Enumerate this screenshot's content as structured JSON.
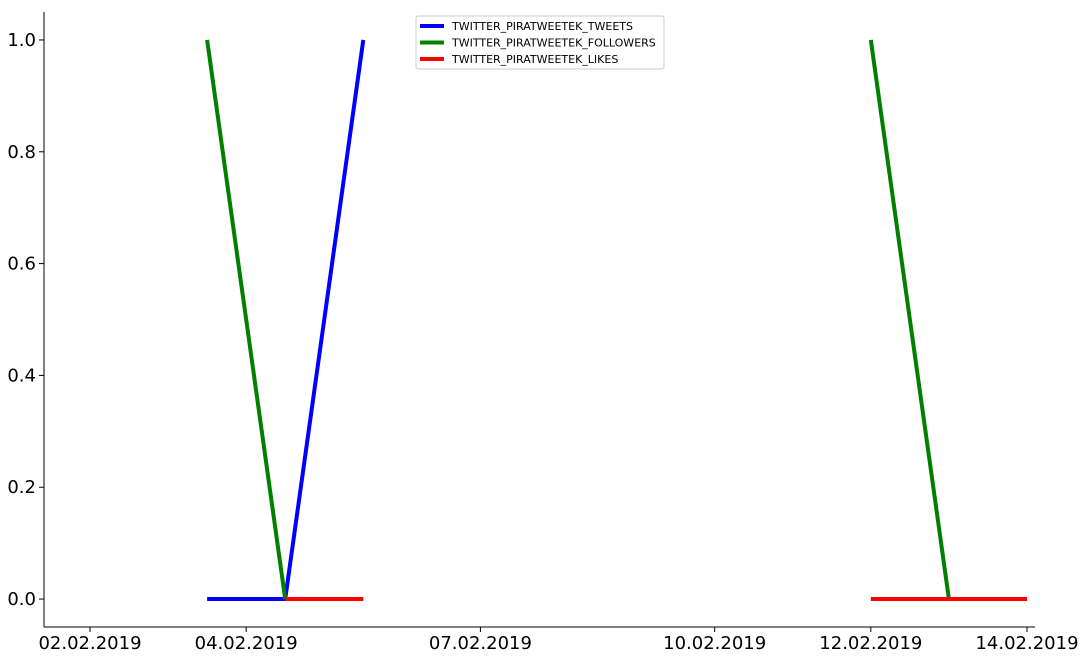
{
  "chart_data": {
    "type": "line",
    "title": "",
    "xlabel": "",
    "ylabel": "",
    "x_axis": {
      "type": "date",
      "ticks": [
        "02.02.2019",
        "04.02.2019",
        "07.02.2019",
        "10.02.2019",
        "12.02.2019",
        "14.02.2019"
      ],
      "range": [
        "2019-02-02",
        "2019-02-14"
      ]
    },
    "y_axis": {
      "ticks": [
        "0.0",
        "0.2",
        "0.4",
        "0.6",
        "0.8",
        "1.0"
      ],
      "range": [
        -0.05,
        1.05
      ]
    },
    "grid": false,
    "legend": {
      "position": "top-center",
      "entries": [
        "TWITTER_PIRATWEETEK_TWEETS",
        "TWITTER_PIRATWEETEK_FOLLOWERS",
        "TWITTER_PIRATWEETEK_LIKES"
      ]
    },
    "series": [
      {
        "name": "TWITTER_PIRATWEETEK_TWEETS",
        "color": "#0000ff",
        "points": [
          [
            "2019-02-03T12:00",
            0
          ],
          [
            "2019-02-04T12:00",
            0
          ],
          [
            "2019-02-05T12:00",
            1
          ]
        ]
      },
      {
        "name": "TWITTER_PIRATWEETEK_FOLLOWERS",
        "color": "#008000",
        "segments": [
          [
            [
              "2019-02-03T12:00",
              1
            ],
            [
              "2019-02-04T12:00",
              0
            ]
          ],
          [
            [
              "2019-02-12T00:00",
              1
            ],
            [
              "2019-02-13T00:00",
              0
            ]
          ]
        ]
      },
      {
        "name": "TWITTER_PIRATWEETEK_LIKES",
        "color": "#ff0000",
        "segments": [
          [
            [
              "2019-02-04T12:00",
              0
            ],
            [
              "2019-02-05T12:00",
              0
            ]
          ],
          [
            [
              "2019-02-12T00:00",
              0
            ],
            [
              "2019-02-13T00:00",
              0
            ],
            [
              "2019-02-14T00:00",
              0
            ]
          ]
        ]
      }
    ]
  }
}
